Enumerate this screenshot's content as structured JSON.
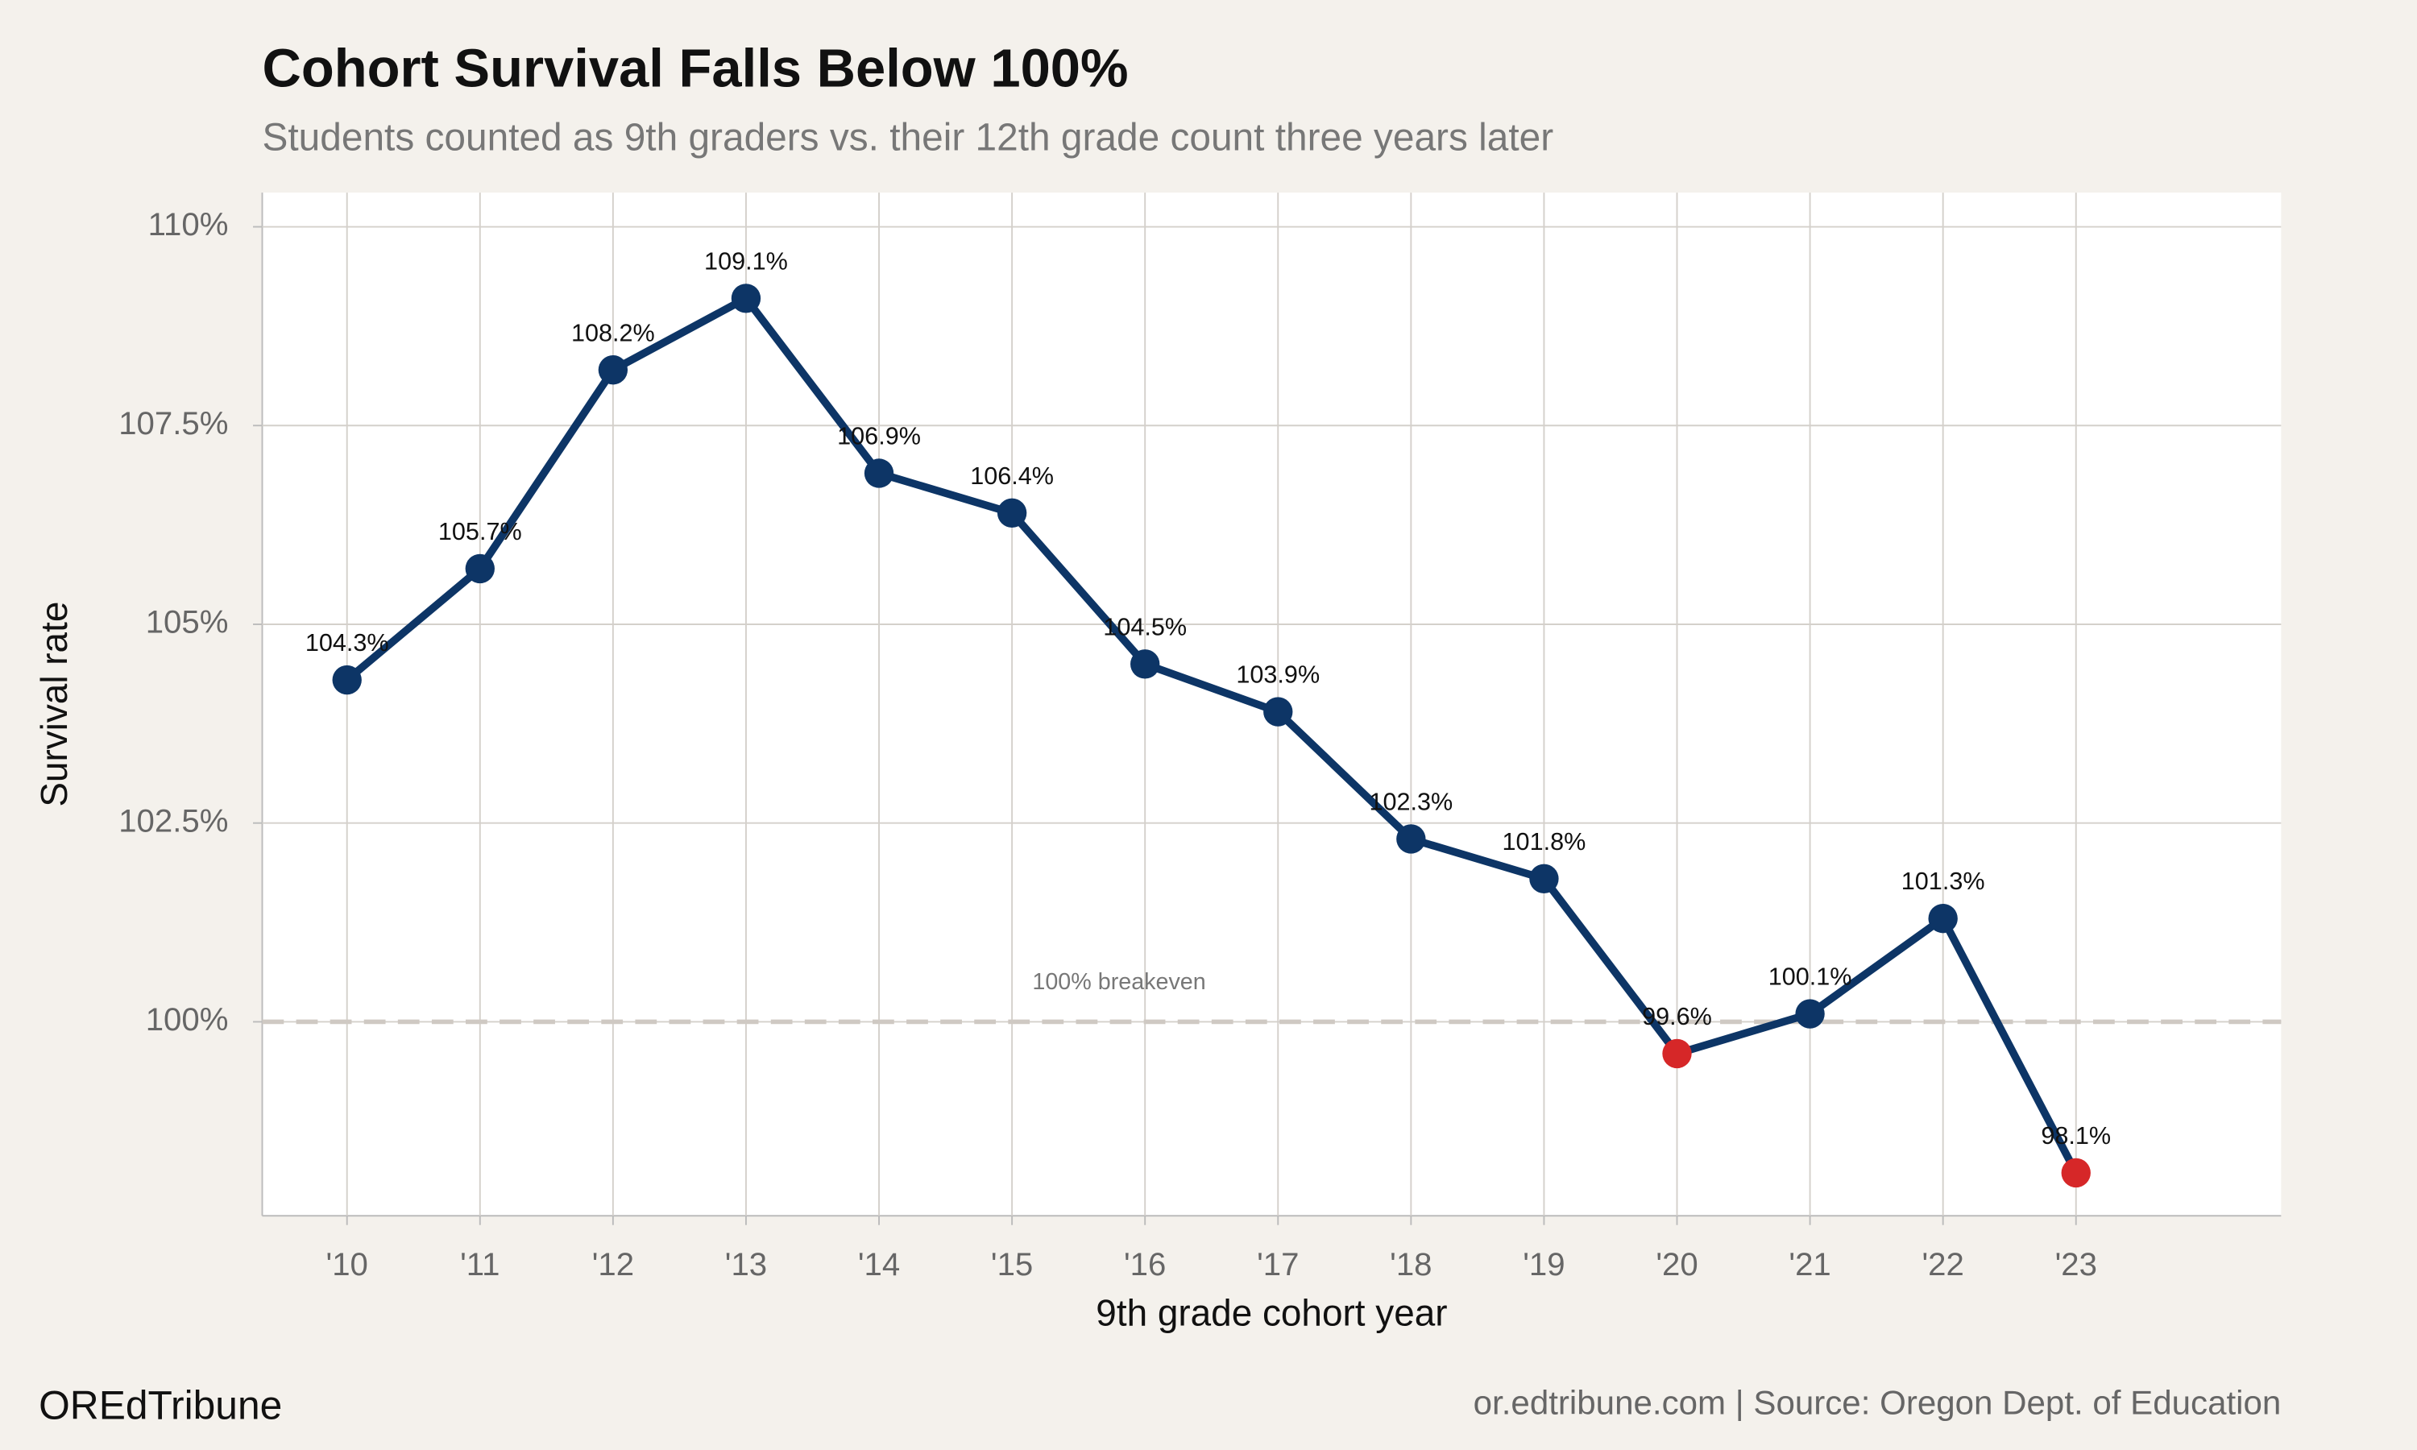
{
  "chart_data": {
    "type": "line",
    "title": "Cohort Survival Falls Below 100%",
    "subtitle": "Students counted as 9th graders vs. their 12th grade count three years later",
    "x_label": "9th grade cohort year",
    "y_label": "Survival rate",
    "categories": [
      "'10",
      "'11",
      "'12",
      "'13",
      "'14",
      "'15",
      "'16",
      "'17",
      "'18",
      "'19",
      "'20",
      "'21",
      "'22",
      "'23"
    ],
    "series": [
      {
        "color": "#0d3566",
        "values": [
          104.3,
          105.7,
          108.2,
          109.1,
          106.9,
          106.4,
          104.5,
          103.9,
          102.3,
          101.8,
          99.6,
          100.1,
          101.3,
          98.1
        ],
        "value_labels": [
          "104.3%",
          "105.7%",
          "108.2%",
          "109.1%",
          "106.9%",
          "106.4%",
          "104.5%",
          "103.9%",
          "102.3%",
          "101.8%",
          "99.6%",
          "100.1%",
          "101.3%",
          "98.1%"
        ]
      }
    ],
    "highlight_below_reference_color": "#d62728",
    "reference_line": {
      "value": 100,
      "label": "100% breakeven",
      "color": "#cfc9c3"
    },
    "ylim": [
      97.56,
      110.43
    ],
    "yticks": [
      {
        "value": 100,
        "label": "100%"
      },
      {
        "value": 102.5,
        "label": "102.5%"
      },
      {
        "value": 105,
        "label": "105%"
      },
      {
        "value": 107.5,
        "label": "107.5%"
      },
      {
        "value": 110,
        "label": "110%"
      }
    ],
    "grid": true,
    "footer_left": "OREdTribune",
    "footer_right": "or.edtribune.com | Source: Oregon Dept. of Education"
  }
}
